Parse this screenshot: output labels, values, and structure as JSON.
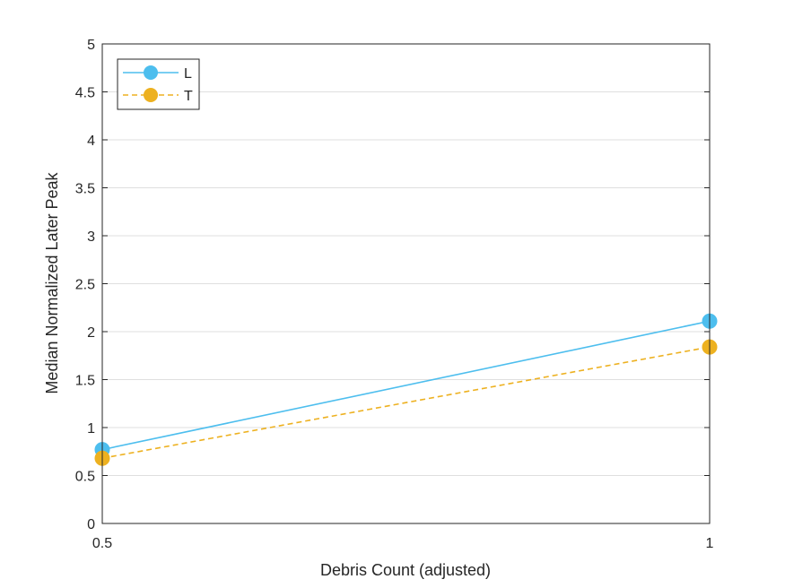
{
  "chart_data": {
    "type": "line",
    "title": "",
    "xlabel": "Debris Count (adjusted)",
    "ylabel": "Median Normalized Later Peak",
    "xlim": [
      0.5,
      1
    ],
    "ylim": [
      0,
      5
    ],
    "xticks": [
      0.5,
      1
    ],
    "xtick_labels": [
      "0.5",
      "1"
    ],
    "yticks": [
      0,
      0.5,
      1,
      1.5,
      2,
      2.5,
      3,
      3.5,
      4,
      4.5,
      5
    ],
    "ytick_labels": [
      "0",
      "0.5",
      "1",
      "1.5",
      "2",
      "2.5",
      "3",
      "3.5",
      "4",
      "4.5",
      "5"
    ],
    "grid": "horizontal",
    "legend_position": "top-left",
    "series": [
      {
        "name": "L",
        "x": [
          0.5,
          1
        ],
        "y": [
          0.77,
          2.11
        ],
        "color": "#4DBEEE",
        "line_style": "solid",
        "marker": "circle"
      },
      {
        "name": "T",
        "x": [
          0.5,
          1
        ],
        "y": [
          0.68,
          1.84
        ],
        "color": "#EDB120",
        "line_style": "dashed",
        "marker": "circle"
      }
    ]
  }
}
